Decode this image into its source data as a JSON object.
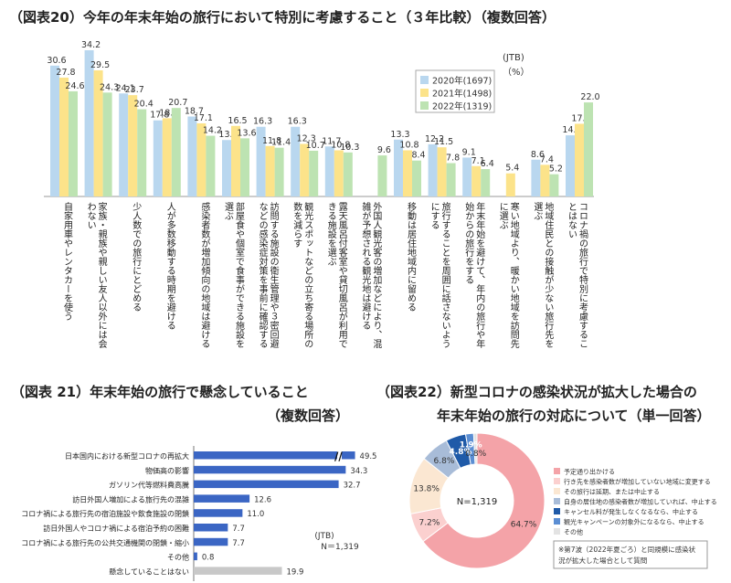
{
  "chart_data": [
    {
      "type": "bar",
      "title": "（図表20）今年の年末年始の旅行において特別に考慮すること（３年比較）（複数回答）",
      "source_label": "(JTB)",
      "unit_label": "（%）",
      "legend_position": "top-right",
      "categories": [
        "自家用車やレンタカーを使う",
        "家族・親族や親しい友人以外には会わない",
        "少人数での旅行にとどめる",
        "人が多数移動する時期を避ける",
        "感染者数が増加傾向の地域は避ける",
        "部屋食や個室で食事ができる施設を選ぶ",
        "訪問する施設の衛生管理や３密回避などの感染症対策を事前に確認する",
        "観光スポットなどの立ち寄る場所の数を減らす",
        "露天風呂付客室や貸切風呂が利用できる施設を選ぶ",
        "外国人観光客の増加などにより、混雑が予想される観光地は避ける",
        "移動は居住地域内に留める",
        "旅行することを周囲に話さないようにする",
        "年末年始を避けて、年内の旅行や年始からの旅行をする",
        "寒い地域より、暖かい地域を訪問先に選ぶ",
        "地域住民との接触が少ない旅行先を選ぶ",
        "コロナ禍の旅行で特別に考慮することはない"
      ],
      "series": [
        {
          "name": "2020年(1697)",
          "color": "#b9d7ef",
          "values": [
            30.6,
            34.2,
            24.1,
            17.8,
            18.7,
            13.2,
            16.3,
            16.3,
            11.7,
            null,
            13.3,
            12.2,
            9.1,
            null,
            8.6,
            14.3
          ]
        },
        {
          "name": "2021年(1498)",
          "color": "#fce38a",
          "values": [
            27.8,
            29.5,
            23.7,
            18.3,
            17.1,
            16.5,
            11.8,
            12.3,
            10.8,
            null,
            10.8,
            11.5,
            7.1,
            5.4,
            7.4,
            17.0
          ]
        },
        {
          "name": "2022年(1319)",
          "color": "#bde3b2",
          "values": [
            24.6,
            24.3,
            20.4,
            20.7,
            14.2,
            13.6,
            11.4,
            10.7,
            10.3,
            9.6,
            8.4,
            7.8,
            6.4,
            null,
            5.2,
            22.0
          ]
        }
      ],
      "ylim": [
        0,
        36
      ]
    },
    {
      "type": "bar",
      "orientation": "horizontal",
      "title": "（図表 21）年末年始の旅行で懸念していること",
      "subtitle": "（複数回答）",
      "source_label": "(JTB)",
      "n_label": "N＝1,319",
      "axis_break_label": "//",
      "categories": [
        "日本国内における新型コロナの再拡大",
        "物価高の影響",
        "ガソリン代等燃料費高騰",
        "訪日外国人増加による旅行先の混雑",
        "コロナ禍による旅行先の宿泊施設や飲食施設の閉鎖",
        "訪日外国人やコロナ禍による宿泊予約の困難",
        "コロナ禍による旅行先の公共交通機関の閉鎖・縮小",
        "その他",
        "懸念していることはない"
      ],
      "values": [
        49.5,
        34.3,
        32.7,
        12.6,
        11.0,
        7.7,
        7.7,
        0.8,
        19.9
      ],
      "colors": [
        "#3b66c4",
        "#3b66c4",
        "#3b66c4",
        "#3b66c4",
        "#3b66c4",
        "#3b66c4",
        "#3b66c4",
        "#3b66c4",
        "#c8c8c8"
      ]
    },
    {
      "type": "pie",
      "style": "donut",
      "title_line1": "（図表22）新型コロナの感染状況が拡大した場合の",
      "title_line2": "年末年始の旅行の対応について（単一回答）",
      "center_label": "N=1,319",
      "note": "※第7波（2022年夏ごろ）と同規模に感染状況が拡大した場合として質問",
      "slices": [
        {
          "label": "予定通り出かける",
          "value": 64.7,
          "color": "#f4a3a8",
          "text": "64.7%"
        },
        {
          "label": "行き先を感染者数が増加していない地域に変更する",
          "value": 7.2,
          "color": "#fbd0cf",
          "text": "7.2%"
        },
        {
          "label": "その旅行は延期、または中止する",
          "value": 13.8,
          "color": "#fbe7d2",
          "text": "13.8%"
        },
        {
          "label": "自身の居住地の感染者数が増加していれば、中止する",
          "value": 6.8,
          "color": "#a8bcd8",
          "text": "6.8%"
        },
        {
          "label": "キャンセル料が発生しなくなるなら、中止する",
          "value": 4.8,
          "color": "#1f5aa8",
          "text": "4.8%"
        },
        {
          "label": "観光キャンペーンの対象外になるなら、中止する",
          "value": 1.9,
          "color": "#5b8ed3",
          "text": "1.9%"
        },
        {
          "label": "その他",
          "value": 0.8,
          "color": "#e3e3e3",
          "text": "0.8%"
        }
      ],
      "legend_position": "right"
    }
  ]
}
